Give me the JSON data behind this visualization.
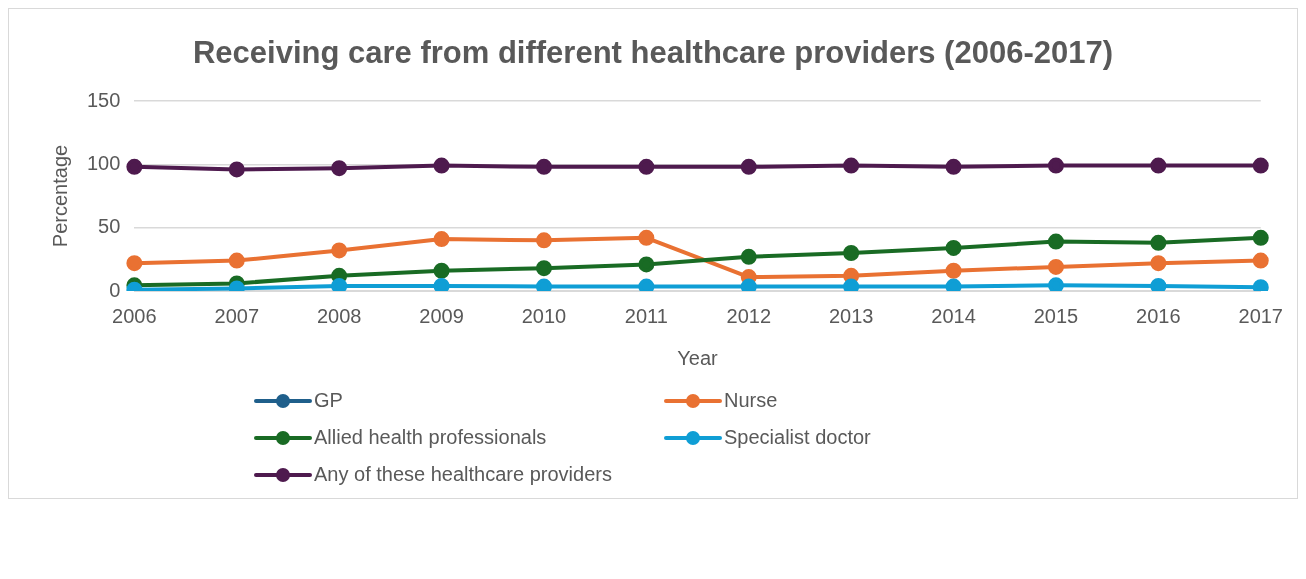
{
  "chart_data": {
    "type": "line",
    "title": "Receiving care from different healthcare providers (2006-2017)",
    "xlabel": "Year",
    "ylabel": "Percentage",
    "categories": [
      "2006",
      "2007",
      "2008",
      "2009",
      "2010",
      "2011",
      "2012",
      "2013",
      "2014",
      "2015",
      "2016",
      "2017"
    ],
    "series": [
      {
        "name": "GP",
        "color": "#1f5f8b",
        "values": [
          null,
          null,
          null,
          null,
          null,
          null,
          null,
          null,
          null,
          null,
          null,
          null
        ]
      },
      {
        "name": "Nurse",
        "color": "#e97132",
        "values": [
          22,
          24,
          32,
          41,
          40,
          42,
          11,
          12,
          16,
          19,
          22,
          24
        ]
      },
      {
        "name": "Allied health professionals",
        "color": "#196b24",
        "values": [
          4.5,
          6,
          12,
          16,
          18,
          21,
          27,
          30,
          34,
          39,
          38,
          42
        ]
      },
      {
        "name": "Specialist doctor",
        "color": "#0f9ed5",
        "values": [
          1,
          2,
          4,
          4,
          3.5,
          3.5,
          3.5,
          3.5,
          3.5,
          4.5,
          4,
          3
        ]
      },
      {
        "name": "Any of these healthcare providers",
        "color": "#4e1a4e",
        "values": [
          98,
          96,
          97,
          99,
          98,
          98,
          98,
          99,
          98,
          99,
          99,
          99
        ]
      }
    ],
    "ylim": [
      0,
      150
    ],
    "yticks": [
      0,
      50,
      100,
      150
    ],
    "grid": "y",
    "legend": "bottom",
    "marker": "circle",
    "line_style": "solid"
  }
}
